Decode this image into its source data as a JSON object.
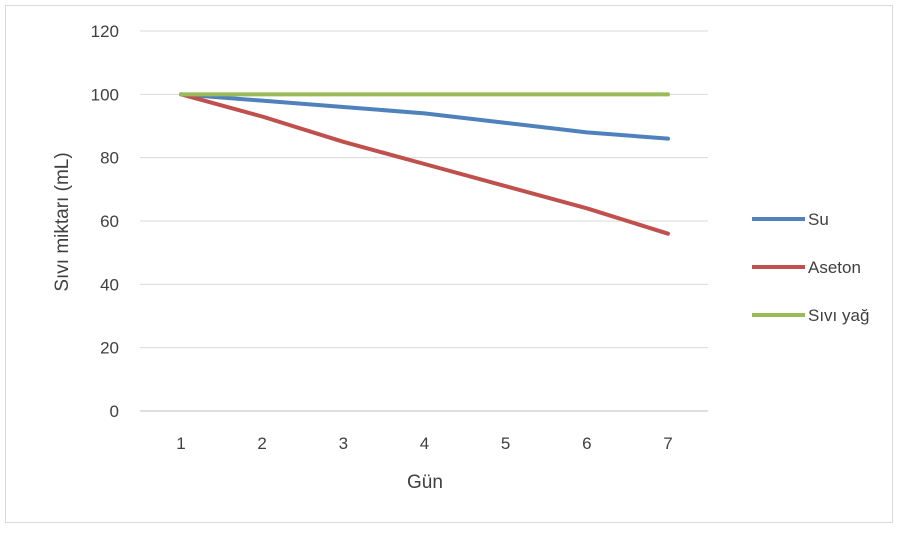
{
  "chart_data": {
    "type": "line",
    "title": "",
    "xlabel": "Gün",
    "ylabel": "Sıvı miktarı (mL)",
    "x": [
      1,
      2,
      3,
      4,
      5,
      6,
      7
    ],
    "x_tick_labels": [
      "1",
      "2",
      "3",
      "4",
      "5",
      "6",
      "7"
    ],
    "ylim": [
      0,
      120
    ],
    "y_ticks": [
      0,
      20,
      40,
      60,
      80,
      100,
      120
    ],
    "y_tick_labels": [
      "0",
      "20",
      "40",
      "60",
      "80",
      "100",
      "120"
    ],
    "grid": true,
    "legend_position": "right",
    "series": [
      {
        "name": "Su",
        "color": "#4f81bd",
        "values": [
          100,
          98,
          96,
          94,
          91,
          88,
          86
        ]
      },
      {
        "name": "Aseton",
        "color": "#c0504d",
        "values": [
          100,
          93,
          85,
          78,
          71,
          64,
          56
        ]
      },
      {
        "name": "Sıvı yağ",
        "color": "#9bbb59",
        "values": [
          100,
          100,
          100,
          100,
          100,
          100,
          100
        ]
      }
    ]
  }
}
